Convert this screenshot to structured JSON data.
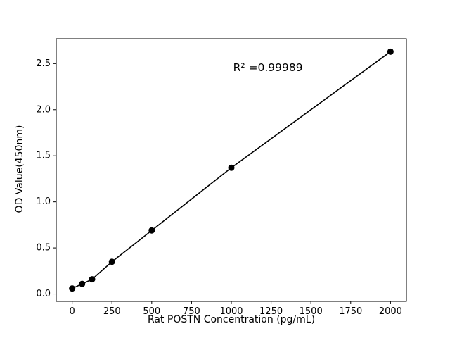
{
  "figure": {
    "background": "#ffffff"
  },
  "chart_data": {
    "type": "scatter",
    "has_line": true,
    "x": [
      0,
      62.5,
      125,
      250,
      500,
      1000,
      2000
    ],
    "y": [
      0.06,
      0.11,
      0.16,
      0.35,
      0.69,
      1.37,
      2.63
    ],
    "title": "",
    "xlabel": "Rat POSTN Concentration (pg/mL)",
    "ylabel": "OD Value(450nm)",
    "x_ticks": [
      0,
      250,
      500,
      750,
      1000,
      1250,
      1500,
      1750,
      2000
    ],
    "y_ticks": [
      0.0,
      0.5,
      1.0,
      1.5,
      2.0,
      2.5
    ],
    "xlim": [
      -100,
      2100
    ],
    "ylim": [
      -0.08,
      2.77
    ],
    "grid": false,
    "legend": "none",
    "annotation": {
      "text": "R² =0.99989",
      "x": 1230,
      "y": 2.42
    },
    "marker_color": "#000000",
    "line_color": "#000000",
    "axis_color": "#000000"
  }
}
